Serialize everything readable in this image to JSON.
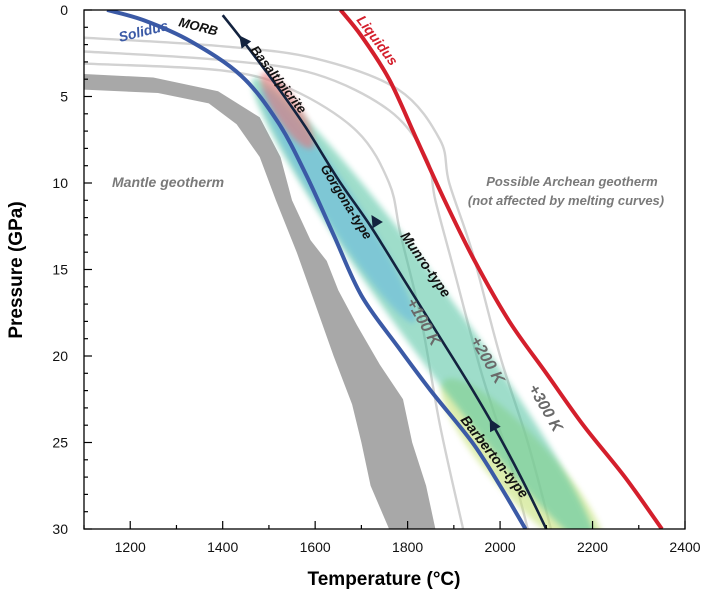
{
  "chart_data": {
    "type": "line",
    "title": "",
    "xlabel": "Temperature (°C)",
    "ylabel": "Pressure (GPa)",
    "xlim": [
      1100,
      2400
    ],
    "ylim": [
      30,
      0
    ],
    "xticks": [
      1200,
      1400,
      1600,
      1800,
      2000,
      2200,
      2400
    ],
    "yticks": [
      0,
      5,
      10,
      15,
      20,
      25,
      30
    ],
    "colors": {
      "solidus": "#3b5aa6",
      "liquidus": "#d41f2c",
      "mantle": "#a8a8a8",
      "archean": "#d2d2d2",
      "path": "#13233f",
      "gorgona": "#5fb3e0",
      "munro": "#4fc2a0",
      "barberton": "#c7e27a",
      "basalt": "#e8777a",
      "label_grey": "#7a7a7a",
      "label_blue": "#3b5aa6",
      "label_red": "#d41f2c"
    },
    "series": [
      {
        "name": "Solidus",
        "points": [
          [
            1150,
            0
          ],
          [
            1230,
            0.6
          ],
          [
            1330,
            1.8
          ],
          [
            1440,
            3.8
          ],
          [
            1520,
            6.5
          ],
          [
            1580,
            9.5
          ],
          [
            1640,
            13
          ],
          [
            1700,
            16.5
          ],
          [
            1780,
            19.5
          ],
          [
            1850,
            22
          ],
          [
            1940,
            25
          ],
          [
            2000,
            27.5
          ],
          [
            2055,
            30
          ]
        ]
      },
      {
        "name": "Liquidus",
        "points": [
          [
            1655,
            0
          ],
          [
            1700,
            1.5
          ],
          [
            1760,
            4
          ],
          [
            1820,
            7.5
          ],
          [
            1880,
            11
          ],
          [
            1945,
            14.5
          ],
          [
            2020,
            18
          ],
          [
            2100,
            21
          ],
          [
            2180,
            24
          ],
          [
            2270,
            27
          ],
          [
            2350,
            30
          ]
        ]
      },
      {
        "name": "MORB path",
        "points": [
          [
            1400,
            0.3
          ],
          [
            1450,
            2
          ],
          [
            1520,
            4.5
          ],
          [
            1580,
            6.8
          ],
          [
            1650,
            9.8
          ],
          [
            1720,
            12.5
          ],
          [
            1790,
            15.5
          ],
          [
            1860,
            18.5
          ],
          [
            1930,
            21.5
          ],
          [
            1985,
            24
          ],
          [
            2045,
            27
          ],
          [
            2100,
            30
          ]
        ]
      }
    ],
    "archean_geotherms": [
      {
        "points": [
          [
            1100,
            1.6
          ],
          [
            1400,
            2.1
          ],
          [
            1600,
            2.8
          ],
          [
            1780,
            4.6
          ],
          [
            1870,
            7.5
          ],
          [
            1890,
            10
          ],
          [
            1940,
            14
          ],
          [
            2000,
            20
          ],
          [
            2060,
            25
          ],
          [
            2110,
            30
          ]
        ]
      },
      {
        "points": [
          [
            1100,
            2.4
          ],
          [
            1400,
            2.9
          ],
          [
            1600,
            3.7
          ],
          [
            1760,
            5.8
          ],
          [
            1840,
            8.5
          ],
          [
            1860,
            11
          ],
          [
            1900,
            15
          ],
          [
            1960,
            21
          ],
          [
            2020,
            26
          ],
          [
            2060,
            30
          ]
        ]
      },
      {
        "points": [
          [
            1100,
            3.1
          ],
          [
            1400,
            3.5
          ],
          [
            1550,
            4.6
          ],
          [
            1690,
            7
          ],
          [
            1760,
            10
          ],
          [
            1785,
            13
          ],
          [
            1830,
            18
          ],
          [
            1870,
            24
          ],
          [
            1920,
            30
          ]
        ]
      }
    ],
    "mantle_geotherm_band": {
      "upper": [
        [
          1100,
          3.7
        ],
        [
          1250,
          3.9
        ],
        [
          1390,
          4.7
        ],
        [
          1480,
          6.2
        ],
        [
          1525,
          8.5
        ],
        [
          1550,
          11
        ],
        [
          1590,
          13.3
        ],
        [
          1625,
          14.5
        ],
        [
          1650,
          16.2
        ],
        [
          1690,
          18.2
        ],
        [
          1740,
          20.5
        ],
        [
          1790,
          22.5
        ],
        [
          1810,
          25
        ],
        [
          1840,
          27.5
        ],
        [
          1860,
          30
        ]
      ],
      "lower": [
        [
          1760,
          30
        ],
        [
          1720,
          27.5
        ],
        [
          1700,
          25
        ],
        [
          1680,
          22.8
        ],
        [
          1640,
          20
        ],
        [
          1600,
          17
        ],
        [
          1560,
          14
        ],
        [
          1515,
          11
        ],
        [
          1480,
          8.5
        ],
        [
          1430,
          6.6
        ],
        [
          1370,
          5.4
        ],
        [
          1260,
          4.8
        ],
        [
          1100,
          4.6
        ]
      ]
    },
    "melt_fields": [
      {
        "name": "Basalt/picrite",
        "center": [
          1540,
          5.8
        ],
        "length_gpa": 4.2,
        "width_c": 55,
        "angle": -57
      },
      {
        "name": "Gorgona-type",
        "center": [
          1650,
          11.3
        ],
        "length_gpa": 13,
        "width_c": 75,
        "angle": -57
      },
      {
        "name": "Munro-type",
        "center": [
          1835,
          17.5
        ],
        "length_gpa": 27,
        "width_c": 130,
        "angle": -54
      },
      {
        "name": "Barberton-type",
        "center": [
          2050,
          26.5
        ],
        "length_gpa": 11,
        "width_c": 130,
        "angle": -48
      }
    ],
    "arrows": [
      {
        "at": [
          1445,
          1.8
        ],
        "direction": "up"
      },
      {
        "at": [
          1730,
          12.2
        ],
        "direction": "up"
      },
      {
        "at": [
          1985,
          24
        ],
        "direction": "up"
      }
    ],
    "annotations": {
      "solidus": "Solidus",
      "morb": "MORB",
      "liquidus": "Liquidus",
      "basalt": "Basalt/picrite",
      "mantle": "Mantle geotherm",
      "archean_line1": "Possible Archean geotherm",
      "archean_line2": "(not affected by melting curves)",
      "gorgona": "Gorgona-type",
      "munro": "Munro-type",
      "barberton": "Barberton-type",
      "plus100": "+100 K",
      "plus200": "+200 K",
      "plus300": "+300 K"
    }
  }
}
